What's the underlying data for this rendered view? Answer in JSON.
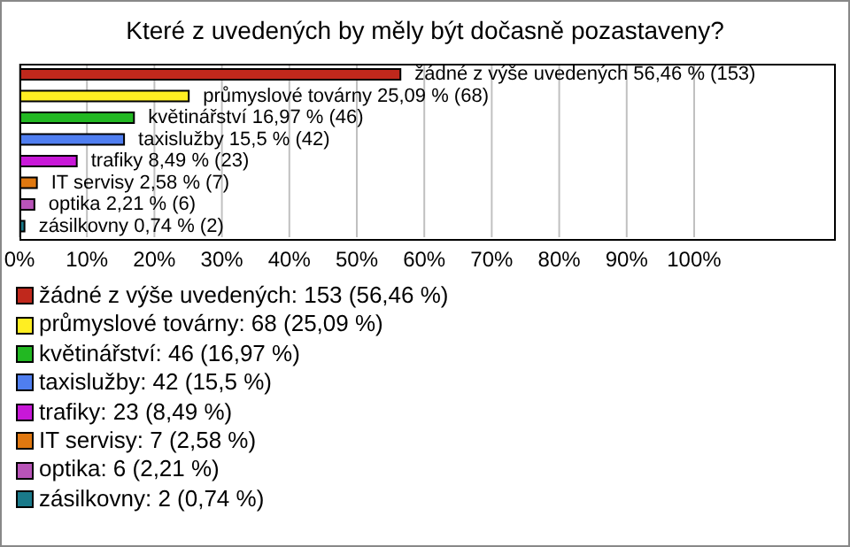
{
  "chart_data": {
    "type": "bar",
    "orientation": "horizontal",
    "stacked": true,
    "title": "Které z uvedených by měly být dočasně pozastaveny?",
    "categories": [
      null,
      null,
      null,
      null,
      null,
      null,
      null,
      null
    ],
    "series": [
      {
        "name": "žádné z výše uvedených: 153 (56,46 %)",
        "color": "#c0281c",
        "values": [
          56.46,
          null,
          null,
          null,
          null,
          null,
          null,
          null
        ],
        "value_labels": [
          "žádné z výše uvedených 56,46 % (153)",
          null,
          null,
          null,
          null,
          null,
          null,
          null
        ]
      },
      {
        "name": "průmyslové továrny: 68 (25,09 %)",
        "color": "#ffee22",
        "values": [
          null,
          25.09,
          null,
          null,
          null,
          null,
          null,
          null
        ],
        "value_labels": [
          null,
          "průmyslové továrny 25,09 % (68)",
          null,
          null,
          null,
          null,
          null,
          null
        ]
      },
      {
        "name": "květinářství: 46 (16,97 %)",
        "color": "#22b822",
        "values": [
          null,
          null,
          16.97,
          null,
          null,
          null,
          null,
          null
        ],
        "value_labels": [
          null,
          null,
          "květinářství 16,97 % (46)",
          null,
          null,
          null,
          null,
          null
        ]
      },
      {
        "name": "taxislužby: 42 (15,5 %)",
        "color": "#4f7ef0",
        "values": [
          null,
          null,
          null,
          15.5,
          null,
          null,
          null,
          null
        ],
        "value_labels": [
          null,
          null,
          null,
          "taxislužby 15,5 % (42)",
          null,
          null,
          null,
          null
        ]
      },
      {
        "name": "trafiky: 23 (8,49 %)",
        "color": "#c818d8",
        "values": [
          null,
          null,
          null,
          null,
          8.49,
          null,
          null,
          null
        ],
        "value_labels": [
          null,
          null,
          null,
          null,
          "trafiky 8,49 % (23)",
          null,
          null,
          null
        ]
      },
      {
        "name": "IT servisy: 7 (2,58 %)",
        "color": "#e07810",
        "values": [
          null,
          null,
          null,
          null,
          null,
          2.58,
          null,
          null
        ],
        "value_labels": [
          null,
          null,
          null,
          null,
          null,
          "IT servisy 2,58 % (7)",
          null,
          null
        ]
      },
      {
        "name": "optika: 6 (2,21 %)",
        "color": "#b854b8",
        "values": [
          null,
          null,
          null,
          null,
          null,
          null,
          2.21,
          null
        ],
        "value_labels": [
          null,
          null,
          null,
          null,
          null,
          null,
          "optika 2,21 % (6)",
          null
        ]
      },
      {
        "name": "zásilkovny: 2 (0,74 %)",
        "color": "#1a7a8a",
        "values": [
          null,
          null,
          null,
          null,
          null,
          null,
          null,
          0.74
        ],
        "value_labels": [
          null,
          null,
          null,
          null,
          null,
          null,
          null,
          "zásilkovny 0,74 % (2)"
        ]
      }
    ],
    "xlim": [
      0,
      121
    ],
    "xticks": [
      {
        "value": 0,
        "label": "0%"
      },
      {
        "value": 10,
        "label": "10%"
      },
      {
        "value": 20,
        "label": "20%"
      },
      {
        "value": 30,
        "label": "30%"
      },
      {
        "value": 40,
        "label": "40%"
      },
      {
        "value": 50,
        "label": "50%"
      },
      {
        "value": 60,
        "label": "60%"
      },
      {
        "value": 70,
        "label": "70%"
      },
      {
        "value": 80,
        "label": "80%"
      },
      {
        "value": 90,
        "label": "90%"
      },
      {
        "value": 100,
        "label": "100%"
      }
    ],
    "grid": "x",
    "legend": "bottom"
  }
}
